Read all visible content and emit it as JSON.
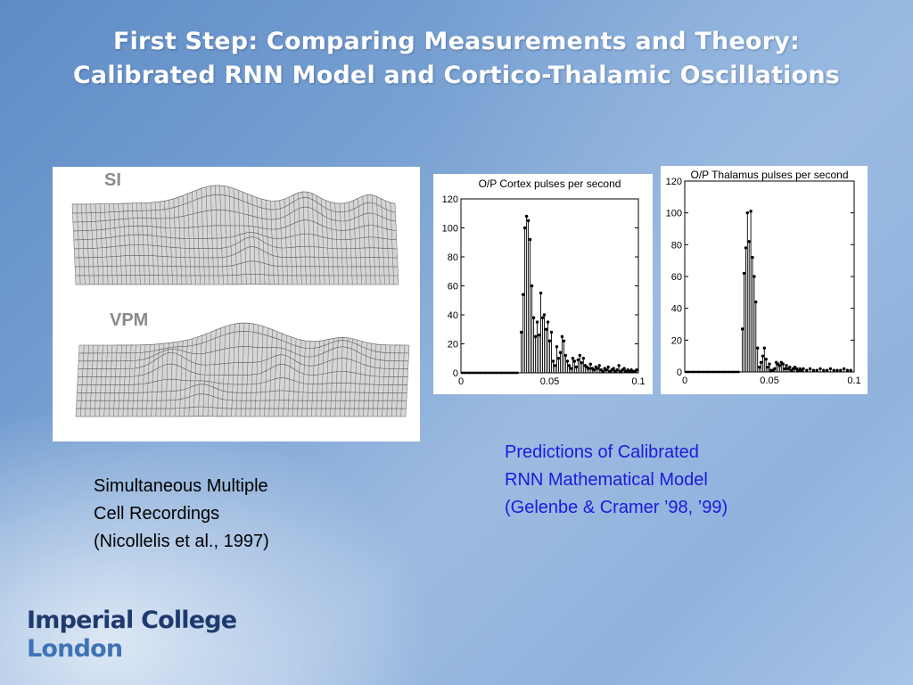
{
  "slide": {
    "title_line1": "First Step: Comparing Measurements and Theory:",
    "title_line2": "Calibrated RNN Model and Cortico-Thalamic Oscillations",
    "colors": {
      "title": "#ffffff",
      "caption_blue": "#1a1adf",
      "logo_dark": "#1f3a6e",
      "logo_light": "#3f73b6"
    }
  },
  "recording_figure": {
    "top_label": "SI",
    "bottom_label": "VPM"
  },
  "left_caption": {
    "line1": "Simultaneous Multiple",
    "line2": "Cell Recordings",
    "line3": "(Nicollelis et al., 1997)"
  },
  "right_caption": {
    "line1": "Predictions of Calibrated",
    "line2": "RNN Mathematical Model",
    "line3": "(Gelenbe & Cramer ’98, ’99)"
  },
  "logo": {
    "line1": "Imperial College",
    "line2": "London"
  },
  "chart_data": [
    {
      "type": "bar",
      "title": "O/P Cortex pulses per second",
      "xlim": [
        0,
        0.1
      ],
      "ylim": [
        0,
        120
      ],
      "xticks": [
        "0",
        "0.05",
        "0.1"
      ],
      "yticks": [
        "0",
        "20",
        "40",
        "60",
        "80",
        "100",
        "120"
      ],
      "grid": false,
      "x": [
        0.002,
        0.005,
        0.008,
        0.011,
        0.014,
        0.017,
        0.02,
        0.023,
        0.026,
        0.029,
        0.032,
        0.034,
        0.035,
        0.036,
        0.037,
        0.038,
        0.039,
        0.04,
        0.041,
        0.042,
        0.043,
        0.044,
        0.045,
        0.046,
        0.047,
        0.048,
        0.049,
        0.05,
        0.051,
        0.052,
        0.053,
        0.054,
        0.055,
        0.056,
        0.057,
        0.058,
        0.059,
        0.06,
        0.061,
        0.062,
        0.063,
        0.064,
        0.065,
        0.066,
        0.067,
        0.068,
        0.069,
        0.07,
        0.071,
        0.072,
        0.073,
        0.074,
        0.075,
        0.076,
        0.077,
        0.078,
        0.079,
        0.08,
        0.081,
        0.082,
        0.083,
        0.084,
        0.085,
        0.086,
        0.087,
        0.088,
        0.089,
        0.09,
        0.091,
        0.092,
        0.093,
        0.094,
        0.095,
        0.096,
        0.097,
        0.098,
        0.099
      ],
      "values": [
        0,
        0,
        0,
        0,
        0,
        0,
        0,
        0,
        0,
        0,
        0,
        28,
        54,
        100,
        108,
        105,
        92,
        60,
        38,
        25,
        35,
        26,
        55,
        38,
        40,
        30,
        35,
        22,
        28,
        8,
        5,
        18,
        10,
        14,
        25,
        22,
        12,
        8,
        5,
        3,
        10,
        8,
        4,
        9,
        12,
        7,
        10,
        5,
        4,
        3,
        6,
        3,
        2,
        4,
        3,
        5,
        2,
        1,
        3,
        2,
        4,
        1,
        2,
        3,
        1,
        2,
        5,
        1,
        2,
        3,
        1,
        2,
        1,
        2,
        1,
        1,
        2
      ]
    },
    {
      "type": "bar",
      "title": "O/P Thalamus pulses per second",
      "xlim": [
        0,
        0.1
      ],
      "ylim": [
        0,
        120
      ],
      "xticks": [
        "0",
        "0.05",
        "0.1"
      ],
      "yticks": [
        "0",
        "20",
        "40",
        "60",
        "80",
        "100",
        "120"
      ],
      "grid": false,
      "x": [
        0.002,
        0.005,
        0.008,
        0.011,
        0.014,
        0.017,
        0.02,
        0.023,
        0.026,
        0.029,
        0.032,
        0.034,
        0.035,
        0.036,
        0.037,
        0.038,
        0.039,
        0.04,
        0.041,
        0.042,
        0.043,
        0.044,
        0.045,
        0.046,
        0.047,
        0.048,
        0.049,
        0.05,
        0.051,
        0.052,
        0.053,
        0.054,
        0.055,
        0.056,
        0.057,
        0.058,
        0.059,
        0.06,
        0.061,
        0.062,
        0.063,
        0.064,
        0.065,
        0.066,
        0.067,
        0.068,
        0.069,
        0.07,
        0.072,
        0.074,
        0.076,
        0.078,
        0.08,
        0.082,
        0.084,
        0.086,
        0.088,
        0.09,
        0.092,
        0.094,
        0.096,
        0.098
      ],
      "values": [
        0,
        0,
        0,
        0,
        0,
        0,
        0,
        0,
        0,
        0,
        0,
        27,
        62,
        78,
        100,
        82,
        101,
        72,
        60,
        44,
        15,
        3,
        6,
        10,
        15,
        8,
        3,
        5,
        1,
        1,
        2,
        6,
        5,
        4,
        6,
        5,
        2,
        4,
        2,
        3,
        1,
        2,
        3,
        2,
        1,
        2,
        1,
        2,
        1,
        2,
        1,
        1,
        2,
        1,
        1,
        2,
        1,
        1,
        1,
        2,
        1,
        1
      ]
    }
  ]
}
